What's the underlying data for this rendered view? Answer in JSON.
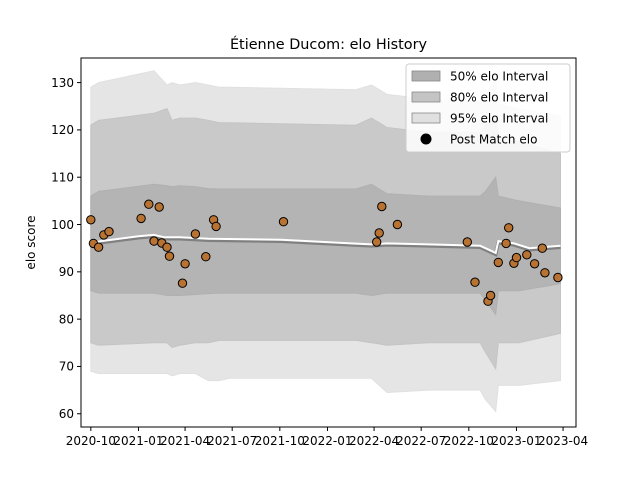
{
  "chart_data": {
    "type": "line",
    "title": "Étienne Ducom: elo History",
    "xlabel": "",
    "ylabel": "elo score",
    "xlim": [
      "2020-09-12",
      "2023-04-26"
    ],
    "ylim": [
      57.2,
      135.2
    ],
    "x_ticks": [
      "2020-10",
      "2021-01",
      "2021-04",
      "2021-07",
      "2021-10",
      "2022-01",
      "2022-04",
      "2022-07",
      "2022-10",
      "2023-01",
      "2023-04"
    ],
    "y_ticks": [
      60,
      70,
      80,
      90,
      100,
      110,
      120,
      130
    ],
    "grid": false,
    "legend_position": "top-right",
    "legend": [
      {
        "label": "50% elo Interval",
        "color": "#b0b0b0"
      },
      {
        "label": "80% elo Interval",
        "color": "#c4c4c4"
      },
      {
        "label": "95% elo Interval",
        "color": "#e0e0e0"
      },
      {
        "label": "Post Match elo",
        "color": "#000000"
      }
    ],
    "bands": {
      "x": [
        "2020-10-01",
        "2020-10-16",
        "2021-01-31",
        "2021-02-25",
        "2021-03-07",
        "2021-03-22",
        "2021-04-21",
        "2021-05-16",
        "2021-06-06",
        "2021-06-26",
        "2022-02-25",
        "2022-03-27",
        "2022-04-26",
        "2022-07-15",
        "2022-10-23",
        "2022-11-02",
        "2022-11-22",
        "2022-11-27",
        "2023-01-06",
        "2023-03-27"
      ],
      "p50": [
        [
          86,
          106
        ],
        [
          85.5,
          107
        ],
        [
          85.5,
          108.5
        ],
        [
          85,
          108.2
        ],
        [
          85,
          108
        ],
        [
          85,
          108.2
        ],
        [
          85.2,
          108
        ],
        [
          85.4,
          107.6
        ],
        [
          85.5,
          107.5
        ],
        [
          85.5,
          107.5
        ],
        [
          85.5,
          107.5
        ],
        [
          85,
          108.5
        ],
        [
          85.5,
          106.5
        ],
        [
          85.5,
          106
        ],
        [
          85.5,
          106
        ],
        [
          84,
          107
        ],
        [
          81,
          110
        ],
        [
          86,
          106
        ],
        [
          86,
          105
        ],
        [
          87.5,
          103.5
        ]
      ],
      "p80": [
        [
          75,
          121
        ],
        [
          74.5,
          122
        ],
        [
          75,
          123.5
        ],
        [
          75,
          124.5
        ],
        [
          74,
          122
        ],
        [
          74.5,
          122.5
        ],
        [
          75,
          122.5
        ],
        [
          75,
          122
        ],
        [
          75.5,
          121.5
        ],
        [
          75.5,
          121.5
        ],
        [
          75.5,
          121
        ],
        [
          75,
          122.5
        ],
        [
          74.5,
          120.5
        ],
        [
          75,
          119.5
        ],
        [
          75,
          119.5
        ],
        [
          73,
          121
        ],
        [
          69.5,
          123
        ],
        [
          75,
          118.5
        ],
        [
          75,
          117.5
        ],
        [
          77,
          115
        ]
      ],
      "p95": [
        [
          69,
          129
        ],
        [
          68.5,
          130
        ],
        [
          68.5,
          132.5
        ],
        [
          68.5,
          129.5
        ],
        [
          68,
          130
        ],
        [
          68.5,
          129.5
        ],
        [
          68.5,
          130
        ],
        [
          67,
          129.5
        ],
        [
          67,
          129
        ],
        [
          67.5,
          129
        ],
        [
          67.5,
          128.5
        ],
        [
          67.5,
          129.5
        ],
        [
          64.5,
          127.5
        ],
        [
          65,
          126.5
        ],
        [
          65,
          126
        ],
        [
          63,
          127
        ],
        [
          60.5,
          131
        ],
        [
          66,
          125.5
        ],
        [
          66,
          124.5
        ],
        [
          67,
          123
        ]
      ]
    },
    "series": [
      {
        "x": [
          "2020-10-01",
          "2020-10-21",
          "2021-01-01",
          "2021-01-31",
          "2021-02-20",
          "2021-03-22",
          "2021-05-16",
          "2021-10-03",
          "2022-02-15",
          "2022-03-27",
          "2022-04-26",
          "2022-07-15",
          "2022-10-23",
          "2022-11-02",
          "2022-11-22",
          "2022-11-27",
          "2022-12-27",
          "2023-01-26",
          "2023-03-27"
        ],
        "values": [
          96,
          96.5,
          97.5,
          97.8,
          97.3,
          97.3,
          97,
          96.8,
          96,
          95.8,
          96,
          95.8,
          95.5,
          95,
          94,
          96.5,
          96,
          95,
          95.5
        ]
      }
    ],
    "points": [
      {
        "x": "2020-10-01",
        "y": 101
      },
      {
        "x": "2020-10-06",
        "y": 96
      },
      {
        "x": "2020-10-16",
        "y": 95.2
      },
      {
        "x": "2020-10-26",
        "y": 97.8
      },
      {
        "x": "2020-11-05",
        "y": 98.5
      },
      {
        "x": "2021-01-06",
        "y": 101.3
      },
      {
        "x": "2021-01-21",
        "y": 104.3
      },
      {
        "x": "2021-01-31",
        "y": 96.5
      },
      {
        "x": "2021-02-10",
        "y": 103.7
      },
      {
        "x": "2021-02-15",
        "y": 96.1
      },
      {
        "x": "2021-02-25",
        "y": 95.2
      },
      {
        "x": "2021-03-02",
        "y": 93.3
      },
      {
        "x": "2021-03-27",
        "y": 87.6
      },
      {
        "x": "2021-04-01",
        "y": 91.7
      },
      {
        "x": "2021-04-21",
        "y": 98
      },
      {
        "x": "2021-05-11",
        "y": 93.2
      },
      {
        "x": "2021-05-26",
        "y": 101
      },
      {
        "x": "2021-05-31",
        "y": 99.6
      },
      {
        "x": "2021-10-08",
        "y": 100.6
      },
      {
        "x": "2022-04-06",
        "y": 96.3
      },
      {
        "x": "2022-04-11",
        "y": 98.2
      },
      {
        "x": "2022-04-16",
        "y": 103.8
      },
      {
        "x": "2022-05-16",
        "y": 100
      },
      {
        "x": "2022-09-28",
        "y": 96.3
      },
      {
        "x": "2022-10-13",
        "y": 87.8
      },
      {
        "x": "2022-11-07",
        "y": 83.8
      },
      {
        "x": "2022-11-12",
        "y": 85
      },
      {
        "x": "2022-11-27",
        "y": 92
      },
      {
        "x": "2022-12-12",
        "y": 96
      },
      {
        "x": "2022-12-17",
        "y": 99.3
      },
      {
        "x": "2022-12-27",
        "y": 91.8
      },
      {
        "x": "2023-01-01",
        "y": 93
      },
      {
        "x": "2023-01-21",
        "y": 93.6
      },
      {
        "x": "2023-02-05",
        "y": 91.7
      },
      {
        "x": "2023-02-20",
        "y": 95
      },
      {
        "x": "2023-02-25",
        "y": 89.8
      },
      {
        "x": "2023-03-22",
        "y": 88.8
      }
    ],
    "colors": {
      "marker_fill": "#b87333",
      "line_main": "#ffffff",
      "line_shadow": "#808080"
    }
  }
}
